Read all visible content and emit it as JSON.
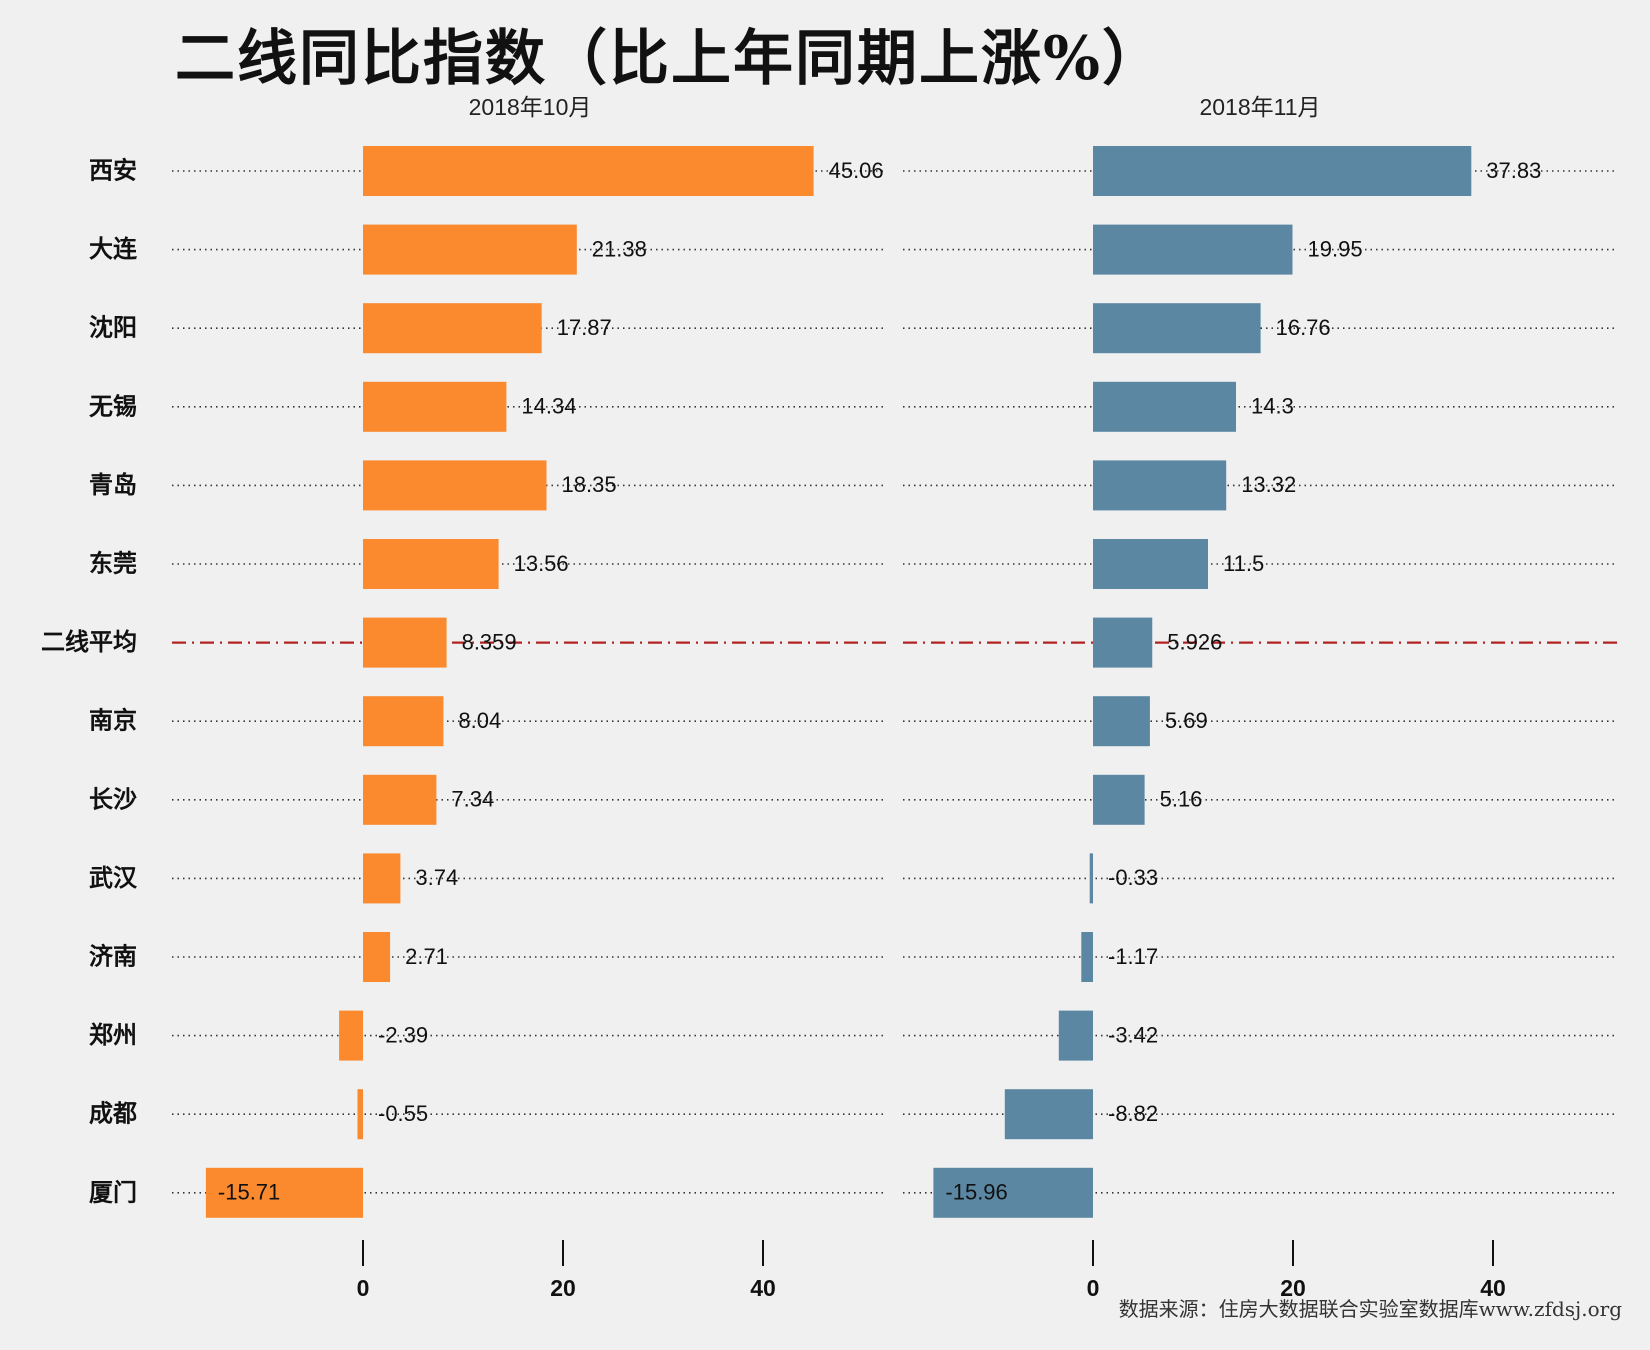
{
  "title": "二线同比指数（比上年同期上涨%）",
  "source": "数据来源：住房大数据联合实验室数据库www.zfdsj.org",
  "colors": {
    "left": "#fb8a2e",
    "right": "#5b87a3",
    "average_line": "#b22222",
    "dots": "#333333"
  },
  "chart_data": [
    {
      "type": "bar",
      "orientation": "horizontal",
      "panel_title": "2018年10月",
      "categories": [
        "西安",
        "大连",
        "沈阳",
        "无锡",
        "青岛",
        "东莞",
        "二线平均",
        "南京",
        "长沙",
        "武汉",
        "济南",
        "郑州",
        "成都",
        "厦门"
      ],
      "values": [
        45.06,
        21.38,
        17.87,
        14.34,
        18.35,
        13.56,
        8.359,
        8.04,
        7.34,
        3.74,
        2.71,
        -2.39,
        -0.55,
        -15.71
      ],
      "value_labels": [
        "45.06",
        "21.38",
        "17.87",
        "14.34",
        "18.35",
        "13.56",
        "8.359",
        "8.04",
        "7.34",
        "3.74",
        "2.71",
        "-2.39",
        "-0.55",
        "-15.71"
      ],
      "xticks": [
        0,
        20,
        40
      ],
      "xlim": [
        -19,
        52
      ],
      "average_category": "二线平均"
    },
    {
      "type": "bar",
      "orientation": "horizontal",
      "panel_title": "2018年11月",
      "categories": [
        "西安",
        "大连",
        "沈阳",
        "无锡",
        "青岛",
        "东莞",
        "二线平均",
        "南京",
        "长沙",
        "武汉",
        "济南",
        "郑州",
        "成都",
        "厦门"
      ],
      "values": [
        37.83,
        19.95,
        16.76,
        14.3,
        13.32,
        11.5,
        5.926,
        5.69,
        5.16,
        -0.33,
        -1.17,
        -3.42,
        -8.82,
        -15.96
      ],
      "value_labels": [
        "37.83",
        "19.95",
        "16.76",
        "14.3",
        "13.32",
        "11.5",
        "5.926",
        "5.69",
        "5.16",
        "-0.33",
        "-1.17",
        "-3.42",
        "-8.82",
        "-15.96"
      ],
      "xticks": [
        0,
        20,
        40
      ],
      "xlim": [
        -19,
        52
      ],
      "average_category": "二线平均"
    }
  ]
}
